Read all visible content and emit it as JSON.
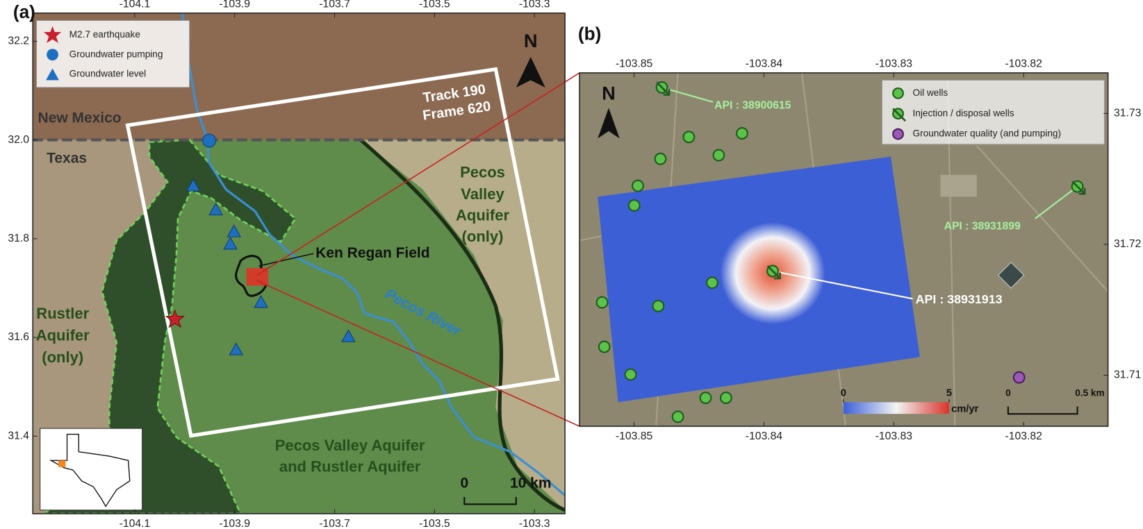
{
  "panel_a": {
    "label": "(a)",
    "xlim": [
      -104.304,
      -103.239
    ],
    "ylim": [
      31.243,
      32.257
    ],
    "xticks": [
      -104.1,
      -103.9,
      -103.7,
      -103.5,
      -103.3
    ],
    "yticks": [
      32.2,
      {
        "value": 32,
        "label": "32.0"
      },
      31.8,
      31.6,
      31.4
    ],
    "legend": [
      "M2.7 earthquake",
      "Groundwater pumping",
      "Groundwater level"
    ],
    "north": "N",
    "labels": {
      "track": "Track 190",
      "frame": "Frame 620",
      "new_mexico": "New Mexico",
      "texas": "Texas",
      "pecos_valley": [
        "Pecos",
        "Valley",
        "Aquifer",
        "(only)"
      ],
      "rustler": [
        "Rustler",
        "Aquifer",
        "(only)"
      ],
      "field": "Ken Regan Field",
      "river": "Pecos River",
      "both": [
        "Pecos Valley Aquifer",
        "and Rustler Aquifer"
      ]
    },
    "scale_bar": [
      "0",
      "10 km"
    ]
  },
  "panel_b": {
    "label": "(b)",
    "xlim": [
      -103.8542,
      -103.8135
    ],
    "ylim": [
      31.7061,
      31.7331
    ],
    "xticks": [
      -103.85,
      -103.84,
      -103.83,
      -103.82
    ],
    "yticks": [
      31.73,
      31.72,
      31.71
    ],
    "legend": [
      "Oil wells",
      "Injection / disposal wells",
      "Groundwater quality (and pumping)"
    ],
    "north": "N",
    "api": [
      "API : 38900615",
      "API : 38931899",
      "API : 38931913"
    ],
    "colorbar": {
      "ticks": [
        0,
        5
      ],
      "unit": "cm/yr"
    },
    "scale_bar": [
      "0",
      "0.5 km"
    ]
  }
}
